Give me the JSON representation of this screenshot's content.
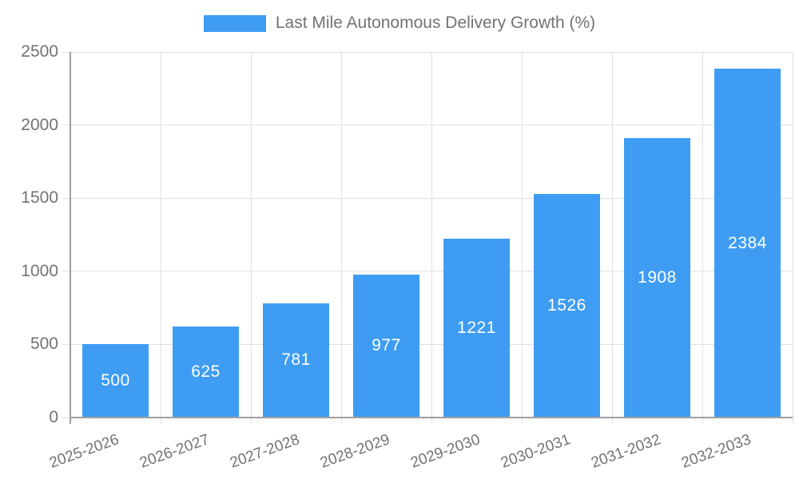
{
  "chart_data": {
    "type": "bar",
    "title": "Last Mile Autonomous Delivery Growth (%)",
    "categories": [
      "2025-2026",
      "2026-2027",
      "2027-2028",
      "2028-2029",
      "2029-2030",
      "2030-2031",
      "2031-2032",
      "2032-2033"
    ],
    "values": [
      500,
      625,
      781,
      977,
      1221,
      1526,
      1908,
      2384
    ],
    "value_labels": [
      "500",
      "625",
      "781",
      "977",
      "1221",
      "1526",
      "1908",
      "2384"
    ],
    "xlabel": "",
    "ylabel": "",
    "ylim": [
      0,
      2500
    ],
    "yticks": [
      0,
      500,
      1000,
      1500,
      2000,
      2500
    ],
    "grid": true,
    "legend_position": "top",
    "x_label_rotation_deg": -20,
    "colors": {
      "bar": "#3E9DF3",
      "value_label": "#FFFFFF",
      "axis_text": "#737373",
      "grid_line": "#E0E0E0",
      "axis_border": "#9E9E9E",
      "background": "#FFFFFF"
    }
  }
}
